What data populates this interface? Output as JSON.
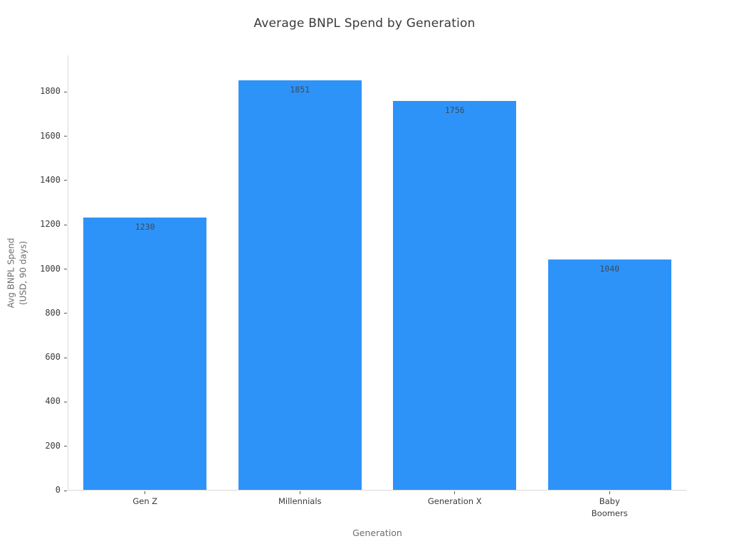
{
  "page": {
    "background": "#ffffff"
  },
  "chart_data": {
    "type": "bar",
    "title": "Average BNPL Spend by Generation",
    "xlabel": "Generation",
    "ylabel": "Avg BNPL Spend\n(USD, 90 days)",
    "categories": [
      "Gen Z",
      "Millennials",
      "Generation X",
      "Baby\nBoomers"
    ],
    "values": [
      1230,
      1851,
      1756,
      1040
    ],
    "bar_labels": [
      "1230",
      "1851",
      "1756",
      "1040"
    ],
    "ylim": [
      0,
      1965
    ],
    "yticks": [
      0,
      200,
      400,
      600,
      800,
      1000,
      1200,
      1400,
      1600,
      1800
    ],
    "grid": false,
    "legend_position": "none",
    "colors": {
      "bar_fill": "#2E93F8",
      "axis_line": "#d9d9d9",
      "tick_mark": "#555555",
      "tick_text": "#3a3a3a",
      "bar_value_text": "#3d4a55",
      "axis_title_text": "#6e6e6e",
      "title_text": "#3a3a3a"
    }
  }
}
